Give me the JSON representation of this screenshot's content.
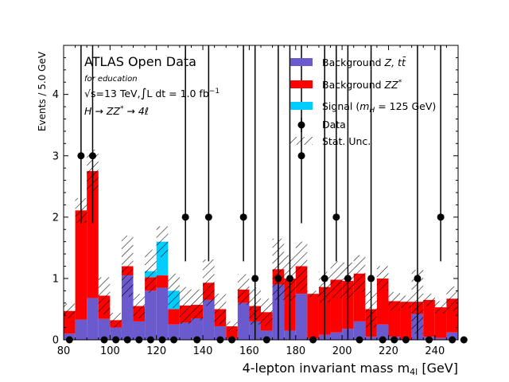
{
  "chart_data": {
    "type": "bar",
    "stacked": true,
    "bin_width": 5,
    "x_bin_edges_start": 80,
    "xlim": [
      80,
      250
    ],
    "ylim": [
      0,
      4.8
    ],
    "xlabel": "4-lepton invariant mass m",
    "xlabel_sub": "4l",
    "xlabel_unit": " [GeV]",
    "ylabel": "Events / 5.0 GeV",
    "x_ticks": [
      "80",
      "100",
      "120",
      "140",
      "160",
      "180",
      "200",
      "220",
      "240"
    ],
    "y_ticks": [
      "0",
      "1",
      "2",
      "3",
      "4"
    ],
    "annotations": {
      "brand": "ATLAS Open Data",
      "education": "for education",
      "energy_prefix": "√s=13 TeV,",
      "integral": "∫",
      "lumi_text": "L dt = 1.0 fb",
      "lumi_exp": "−1",
      "process_left": "H → ZZ",
      "process_star": "*",
      "process_right": " → 4ℓ"
    },
    "series": [
      {
        "name": "Background Z, tt̄",
        "legend_main": "Background ",
        "legend_italic": "Z, t",
        "legend_tbar": "t̄",
        "color": "#6a5acd",
        "values": [
          0.1,
          0.33,
          0.68,
          0.34,
          0.2,
          1.05,
          0.3,
          0.8,
          0.85,
          0.25,
          0.28,
          0.35,
          0.65,
          0.22,
          0.02,
          0.6,
          0.3,
          0.15,
          0.9,
          0.15,
          0.75,
          0.02,
          0.08,
          0.12,
          0.18,
          0.3,
          0.05,
          0.25,
          0.05,
          0.0,
          0.42,
          0.05,
          0.03,
          0.12,
          0.3
        ]
      },
      {
        "name": "Background ZZ*",
        "legend_main": "Background ",
        "legend_italic": "ZZ",
        "legend_star": "*",
        "color": "#ff0000",
        "values": [
          0.37,
          1.78,
          2.07,
          0.38,
          0.12,
          0.15,
          0.25,
          0.22,
          0.2,
          0.25,
          0.28,
          0.22,
          0.28,
          0.28,
          0.2,
          0.22,
          0.25,
          0.3,
          0.25,
          0.85,
          0.45,
          0.73,
          0.78,
          0.86,
          0.78,
          0.78,
          0.45,
          0.75,
          0.58,
          0.62,
          0.2,
          0.6,
          0.5,
          0.55,
          0.45
        ]
      },
      {
        "name": "Signal (mH = 125 GeV)",
        "legend_pre": "Signal (",
        "legend_m": "m",
        "legend_sub": "H",
        "legend_post": " = 125 GeV)",
        "color": "#00ccff",
        "values": [
          0,
          0,
          0,
          0,
          0,
          0,
          0,
          0.1,
          0.55,
          0.3,
          0,
          0,
          0,
          0,
          0,
          0,
          0,
          0,
          0,
          0,
          0,
          0,
          0,
          0,
          0,
          0,
          0,
          0,
          0,
          0,
          0,
          0,
          0,
          0,
          0
        ]
      }
    ],
    "stat_unc": {
      "name": "Stat. Unc.",
      "values": [
        0.12,
        0.2,
        0.35,
        0.3,
        0.12,
        0.5,
        0.2,
        0.35,
        0.25,
        0.28,
        0.3,
        0.25,
        0.38,
        0.25,
        0.08,
        0.25,
        0.3,
        0.22,
        0.5,
        0.38,
        0.4,
        0.05,
        0.25,
        0.3,
        0.3,
        0.3,
        0.3,
        0.2,
        0.15,
        0.1,
        0.52,
        0.1,
        0.1,
        0.2,
        0.3
      ]
    },
    "data": {
      "name": "Data",
      "values": [
        0,
        3,
        3,
        0,
        0,
        0,
        0,
        0,
        0,
        0,
        2,
        0,
        2,
        0,
        0,
        2,
        1,
        0,
        1,
        1,
        3,
        0,
        1,
        2,
        1,
        0,
        1,
        0,
        0,
        0,
        1,
        0,
        2,
        0,
        0
      ],
      "error_top": 4.8,
      "error_low_1": 0.0,
      "error_low_2": 1.28,
      "error_low_3": 1.9
    },
    "legend_position": "top-right",
    "grid": false,
    "colors": {
      "background_z_ttbar": "#6a5acd",
      "background_zz": "#ff0000",
      "signal": "#00ccff",
      "data": "#000000"
    }
  }
}
